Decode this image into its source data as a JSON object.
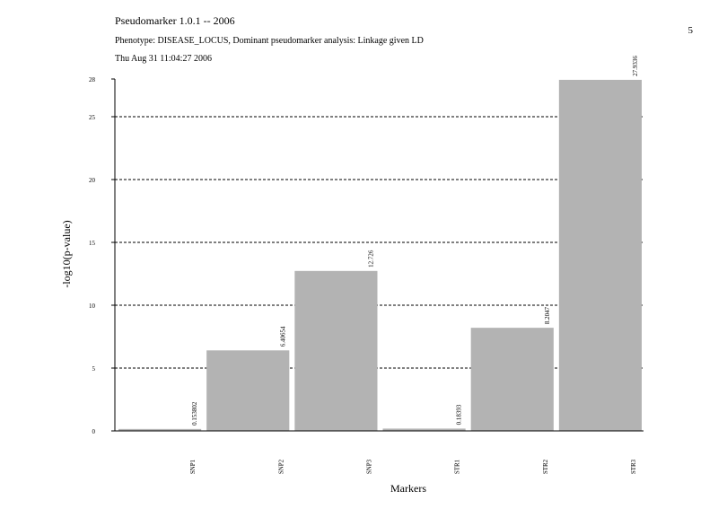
{
  "page_number": 5,
  "chart_data": {
    "type": "bar",
    "title": "Pseudomarker 1.0.1 -- 2006",
    "subtitle": "Phenotype: DISEASE_LOCUS, Dominant pseudomarker analysis: Linkage given LD",
    "timestamp": "Thu Aug 31 11:04:27 2006",
    "y_label": "-log10(p-value)",
    "x_label": "Markers",
    "categories": [
      "SNP1",
      "SNP2",
      "SNP3",
      "STR1",
      "STR2",
      "STR3"
    ],
    "values": [
      0.153802,
      6.40654,
      12.726,
      0.18393,
      8.2047,
      27.9336
    ],
    "color": "#b3b3b3",
    "ylim": [
      0,
      28
    ],
    "yticks": [
      0,
      5,
      10,
      15,
      20,
      25,
      28
    ],
    "grid": true
  }
}
